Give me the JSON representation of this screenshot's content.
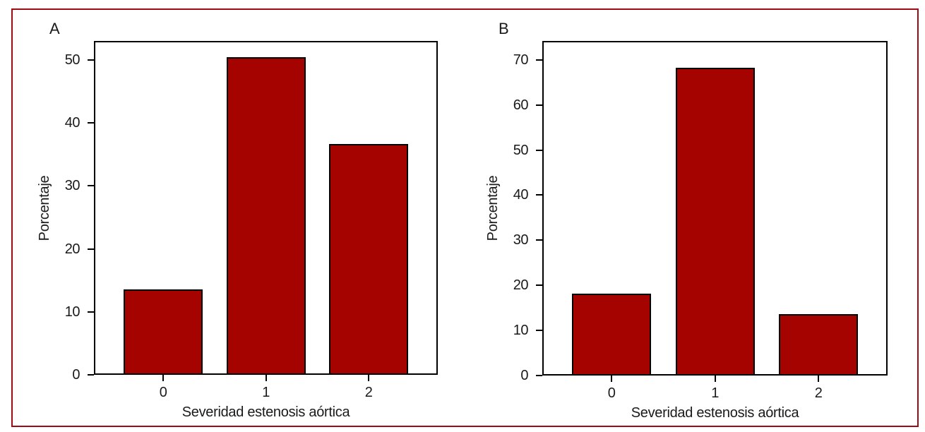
{
  "figure": {
    "background": "#ffffff",
    "border_color": "#9e0b12"
  },
  "bar_style": {
    "fill": "#a50300",
    "stroke": "#000000"
  },
  "chart_data": [
    {
      "type": "bar",
      "panel_label": "A",
      "categories": [
        "0",
        "1",
        "2"
      ],
      "values": [
        13.6,
        50.4,
        36.6
      ],
      "title": "",
      "xlabel": "Severidad estenosis aórtica",
      "ylabel": "Porcentaje",
      "yticks": [
        0,
        10,
        20,
        30,
        40,
        50
      ],
      "ylim": [
        0,
        53
      ],
      "grid": false,
      "legend": null
    },
    {
      "type": "bar",
      "panel_label": "B",
      "categories": [
        "0",
        "1",
        "2"
      ],
      "values": [
        18.2,
        68.2,
        13.6
      ],
      "title": "",
      "xlabel": "Severidad estenosis aórtica",
      "ylabel": "Porcentaje",
      "yticks": [
        0,
        10,
        20,
        30,
        40,
        50,
        60,
        70
      ],
      "ylim": [
        0,
        74.2
      ],
      "grid": false,
      "legend": null
    }
  ]
}
